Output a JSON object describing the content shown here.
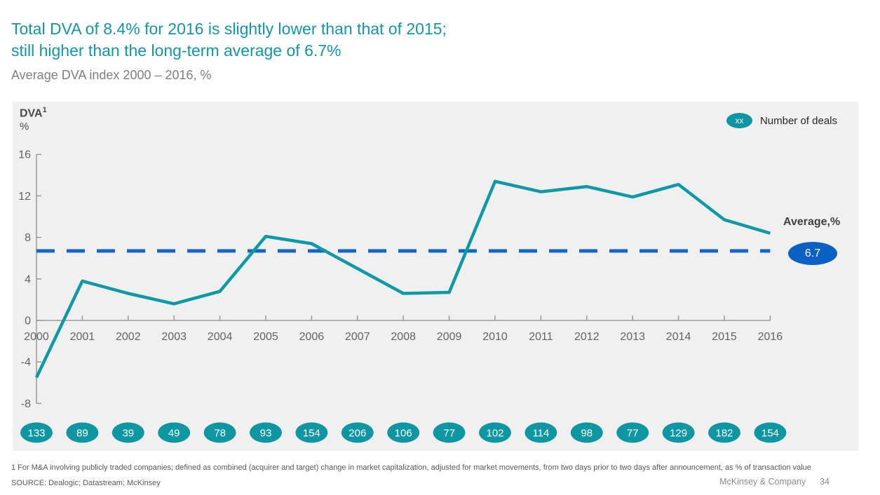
{
  "slide": {
    "title_line1": "Total DVA of 8.4% for 2016 is slightly lower than that of 2015;",
    "title_line2": "still higher than the long-term average of 6.7%",
    "subtitle": "Average DVA index 2000 – 2016, %",
    "footnote": "1 For M&A involving publicly traded companies; defined as combined (acquirer and target) change in market capitalization, adjusted for market movements, from two days prior to two days after announcement, as % of transaction value",
    "source": "SOURCE: Dealogic; Datastream; McKinsey",
    "footer_brand": "McKinsey & Company",
    "page_number": "34"
  },
  "chart": {
    "axis_label": "DVA",
    "axis_label_sup": "1",
    "axis_unit": "%",
    "legend_badge": "xx",
    "legend_label": "Number of deals",
    "average_label": "Average,%",
    "average_value": "6.7"
  },
  "chart_data": {
    "type": "line",
    "title": "Average DVA index 2000 – 2016, %",
    "categories": [
      2000,
      2001,
      2002,
      2003,
      2004,
      2005,
      2006,
      2007,
      2008,
      2009,
      2010,
      2011,
      2012,
      2013,
      2014,
      2015,
      2016
    ],
    "series": [
      {
        "name": "DVA index, %",
        "values": [
          -5.5,
          3.8,
          2.6,
          1.6,
          2.8,
          8.1,
          7.4,
          5.0,
          2.6,
          2.7,
          13.4,
          12.4,
          12.9,
          11.9,
          13.1,
          9.7,
          8.4
        ]
      },
      {
        "name": "Number of deals",
        "values": [
          133,
          89,
          39,
          49,
          78,
          93,
          154,
          206,
          106,
          77,
          102,
          114,
          98,
          77,
          129,
          182,
          154
        ]
      }
    ],
    "average": 6.7,
    "ylim": [
      -8,
      16
    ],
    "yticks": [
      16,
      12,
      8,
      4,
      0,
      -4,
      -8
    ],
    "grid": false,
    "legend_position": "top-right",
    "colors": {
      "line_teal": "#0E99A6",
      "badge_teal": "#0E96A3",
      "average_dash_blue": "#1565C4",
      "average_badge_blue": "#0B60C4",
      "axis_gray": "#9A9A9A",
      "tick_label_gray": "#636363",
      "panel_bg": "#F0F0F0",
      "title_teal": "#1297A6"
    }
  }
}
